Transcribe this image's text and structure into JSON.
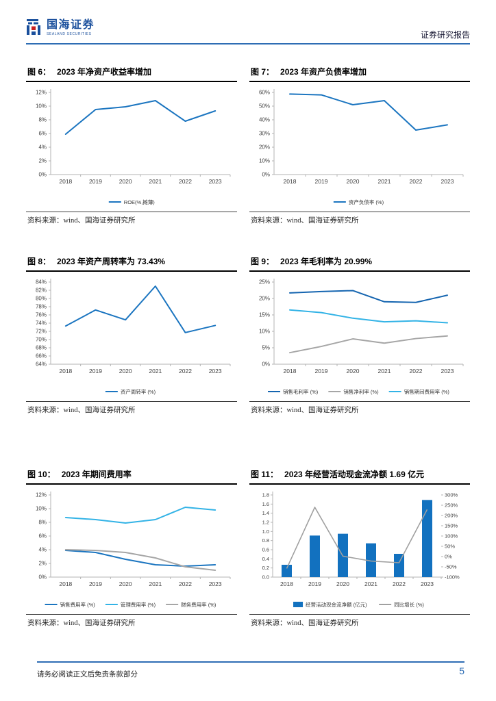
{
  "header": {
    "logo_text": "国海证券",
    "logo_subtext": "SEALAND SECURITIES",
    "report_type": "证券研究报告"
  },
  "footer": {
    "disclaimer": "请务必阅读正文后免责条款部分",
    "page_number": "5"
  },
  "colors": {
    "accent_blue": "#2e6db4",
    "line_blue": "#1b75c0",
    "dark_blue": "#1565b0",
    "cyan": "#33b3e6",
    "gray": "#a6a6a6",
    "bar_blue": "#1271bf"
  },
  "chart_data": [
    {
      "id": "fig6",
      "type": "line",
      "label": "图 6：",
      "title": "2023 年净资产收益率增加",
      "source": "资料来源：wind、国海证券研究所",
      "categories": [
        "2018",
        "2019",
        "2020",
        "2021",
        "2022",
        "2023"
      ],
      "ylim": [
        0,
        12
      ],
      "ystep": 2,
      "yfmt": "pct",
      "grid": false,
      "legend_position": "bottom",
      "series": [
        {
          "name": "ROE(%,摊薄)",
          "color": "#1b75c0",
          "values": [
            5.9,
            9.5,
            9.9,
            10.8,
            7.8,
            9.3
          ]
        }
      ]
    },
    {
      "id": "fig7",
      "type": "line",
      "label": "图 7：",
      "title": "2023 年资产负债率增加",
      "source": "资料来源：wind、国海证券研究所",
      "categories": [
        "2018",
        "2019",
        "2020",
        "2021",
        "2022",
        "2023"
      ],
      "ylim": [
        0,
        60
      ],
      "ystep": 10,
      "yfmt": "pct",
      "grid": false,
      "legend_position": "bottom",
      "series": [
        {
          "name": "资产负债率 (%)",
          "color": "#1b75c0",
          "values": [
            58.8,
            58.2,
            51.0,
            54.0,
            32.5,
            36.3
          ]
        }
      ]
    },
    {
      "id": "fig8",
      "type": "line",
      "label": "图 8：",
      "title": "2023 年资产周转率为 73.43%",
      "source": "资料来源：wind、国海证券研究所",
      "categories": [
        "2018",
        "2019",
        "2020",
        "2021",
        "2022",
        "2023"
      ],
      "ylim": [
        64,
        84
      ],
      "ystep": 2,
      "yfmt": "pct",
      "grid": false,
      "legend_position": "bottom",
      "series": [
        {
          "name": "资产周转率 (%)",
          "color": "#1b75c0",
          "values": [
            73.3,
            77.2,
            74.8,
            83.0,
            71.7,
            73.43
          ]
        }
      ]
    },
    {
      "id": "fig9",
      "type": "line",
      "label": "图 9：",
      "title": "2023 年毛利率为 20.99%",
      "source": "资料来源：wind、国海证券研究所",
      "categories": [
        "2018",
        "2019",
        "2020",
        "2021",
        "2022",
        "2023"
      ],
      "ylim": [
        0,
        25
      ],
      "ystep": 5,
      "yfmt": "pct",
      "grid": false,
      "legend_position": "bottom",
      "series": [
        {
          "name": "销售毛利率 (%)",
          "color": "#1565b0",
          "values": [
            21.7,
            22.1,
            22.4,
            19.0,
            18.8,
            20.99
          ]
        },
        {
          "name": "销售净利率 (%)",
          "color": "#a6a6a6",
          "values": [
            3.5,
            5.4,
            7.7,
            6.4,
            7.8,
            8.6
          ]
        },
        {
          "name": "销售期间费用率 (%)",
          "color": "#33b3e6",
          "values": [
            16.5,
            15.7,
            14.0,
            12.9,
            13.2,
            12.6
          ]
        }
      ]
    },
    {
      "id": "fig10",
      "type": "line",
      "label": "图 10：",
      "title": "2023 年期间费用率",
      "source": "资料来源：wind、国海证券研究所",
      "categories": [
        "2018",
        "2019",
        "2020",
        "2021",
        "2022",
        "2023"
      ],
      "ylim": [
        0,
        12
      ],
      "ystep": 2,
      "yfmt": "pct",
      "grid": false,
      "legend_position": "bottom",
      "series": [
        {
          "name": "销售费用率 (%)",
          "color": "#1b75c0",
          "values": [
            3.9,
            3.6,
            2.6,
            1.8,
            1.6,
            1.8
          ]
        },
        {
          "name": "管理费用率 (%)",
          "color": "#33b3e6",
          "values": [
            8.7,
            8.4,
            7.9,
            8.4,
            10.2,
            9.8
          ]
        },
        {
          "name": "财务费用率 (%)",
          "color": "#a6a6a6",
          "values": [
            4.0,
            3.9,
            3.6,
            2.8,
            1.5,
            1.0
          ]
        }
      ]
    },
    {
      "id": "fig11",
      "type": "bar",
      "label": "图 11：",
      "title": "2023 年经营活动现金流净额 1.69 亿元",
      "source": "资料来源：wind、国海证券研究所",
      "categories": [
        "2018",
        "2019",
        "2020",
        "2021",
        "2022",
        "2023"
      ],
      "ylim_left": [
        0,
        1.8
      ],
      "ystep_left": 0.2,
      "ylim_right": [
        -100,
        300
      ],
      "ystep_right": 50,
      "grid": false,
      "legend_position": "bottom",
      "bar_series": {
        "name": "经营活动现金流净额 (亿元)",
        "color": "#1271bf",
        "values": [
          0.27,
          0.91,
          0.95,
          0.74,
          0.51,
          1.69
        ]
      },
      "line_series": {
        "name": "同比增长 (%)",
        "color": "#a0a0a0",
        "values": [
          -58,
          240,
          2,
          -22,
          -30,
          229
        ]
      }
    }
  ]
}
